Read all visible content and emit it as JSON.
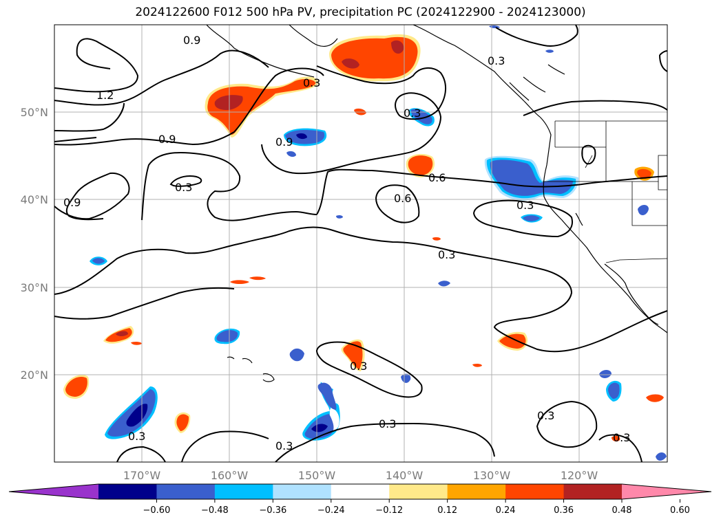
{
  "title": "2024122600 F012 500 hPa PV, precipitation PC (2024122900 - 2024123000)",
  "map": {
    "lon_ticks": [
      "170°W",
      "160°W",
      "150°W",
      "140°W",
      "130°W",
      "120°W"
    ],
    "lat_ticks": [
      "50°N",
      "40°N",
      "30°N",
      "20°N"
    ],
    "lon_range": [
      -180,
      -110
    ],
    "lat_range": [
      10,
      60
    ],
    "grid": true
  },
  "contour_labels": [
    "0.9",
    "1.2",
    "0.9",
    "0.9",
    "0.3",
    "0.9",
    "0.3",
    "0.3",
    "0.3",
    "0.6",
    "0.6",
    "0.3",
    "0.3",
    "0.3",
    "0.3",
    "0.3",
    "0.3",
    "0.3",
    "0.3"
  ],
  "colorbar": {
    "ticks": [
      "−0.60",
      "−0.48",
      "−0.36",
      "−0.24",
      "−0.12",
      "0.12",
      "0.24",
      "0.36",
      "0.48",
      "0.60"
    ],
    "colors": [
      "#9933cc",
      "#00008b",
      "#3a5fcd",
      "#00bfff",
      "#b0e2ff",
      "#ffffff",
      "#ffe98a",
      "#ffa500",
      "#ff4500",
      "#b22222",
      "#ff88aa"
    ],
    "extend": "both"
  }
}
